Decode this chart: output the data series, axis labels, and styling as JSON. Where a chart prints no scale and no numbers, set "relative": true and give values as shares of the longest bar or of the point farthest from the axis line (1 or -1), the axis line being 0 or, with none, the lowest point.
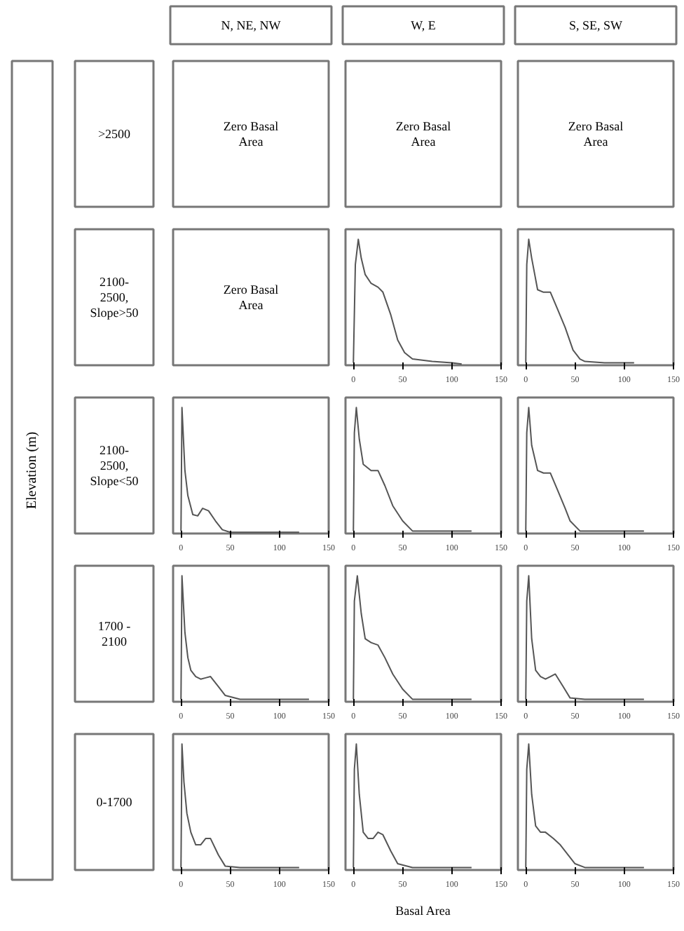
{
  "chart_data": [
    {
      "type": "other",
      "categories": [
        "N, NE, NW",
        "W, E",
        "S, SE, SW"
      ],
      "annotations": [
        ">2500",
        "2100-2500, Slope>50",
        "2100-2500, Slope<50",
        "1700 - 2100",
        "0-1700"
      ],
      "xlabel": "Basal Area",
      "ylabel": "Elevation (m)"
    },
    {
      "type": "other",
      "annotations": [
        "Zero Basal Area"
      ]
    },
    {
      "type": "other",
      "annotations": [
        "Zero Basal Area"
      ]
    },
    {
      "type": "other",
      "annotations": [
        "Zero Basal Area"
      ]
    },
    {
      "type": "other",
      "annotations": [
        "Zero Basal Area"
      ]
    },
    {
      "type": "line",
      "relative": true,
      "color": "#555555",
      "xlim": [
        -8,
        150
      ],
      "xticks": [
        0,
        50,
        100,
        150
      ],
      "tick_labels": "x",
      "x": [
        0,
        2,
        5,
        8,
        12,
        18,
        25,
        30,
        38,
        45,
        52,
        60,
        70,
        80,
        100,
        110
      ],
      "values": [
        0.02,
        0.8,
        1.0,
        0.85,
        0.72,
        0.65,
        0.62,
        0.58,
        0.4,
        0.2,
        0.1,
        0.05,
        0.04,
        0.03,
        0.02,
        0.01
      ]
    },
    {
      "type": "line",
      "relative": true,
      "color": "#555555",
      "xlim": [
        -8,
        150
      ],
      "xticks": [
        0,
        50,
        100,
        150
      ],
      "tick_labels": "x",
      "x": [
        0,
        1,
        3,
        6,
        12,
        18,
        25,
        32,
        40,
        48,
        55,
        60,
        80,
        110
      ],
      "values": [
        0.02,
        0.8,
        1.0,
        0.85,
        0.6,
        0.58,
        0.58,
        0.45,
        0.3,
        0.12,
        0.05,
        0.03,
        0.02,
        0.02
      ]
    },
    {
      "type": "line",
      "relative": true,
      "color": "#555555",
      "xlim": [
        -8,
        150
      ],
      "xticks": [
        0,
        50,
        100,
        150
      ],
      "tick_labels": "x",
      "x": [
        0,
        1,
        4,
        7,
        12,
        17,
        22,
        28,
        35,
        42,
        50,
        80,
        120
      ],
      "values": [
        0.02,
        1.0,
        0.5,
        0.3,
        0.15,
        0.14,
        0.2,
        0.18,
        0.1,
        0.03,
        0.01,
        0.01,
        0.01
      ]
    },
    {
      "type": "line",
      "relative": true,
      "color": "#555555",
      "xlim": [
        -8,
        150
      ],
      "xticks": [
        0,
        50,
        100,
        150
      ],
      "tick_labels": "x",
      "x": [
        0,
        1,
        3,
        6,
        10,
        18,
        25,
        32,
        40,
        50,
        60,
        90,
        120
      ],
      "values": [
        0.02,
        0.8,
        1.0,
        0.75,
        0.55,
        0.5,
        0.5,
        0.38,
        0.22,
        0.1,
        0.02,
        0.02,
        0.02
      ]
    },
    {
      "type": "line",
      "relative": true,
      "color": "#555555",
      "xlim": [
        -8,
        150
      ],
      "xticks": [
        0,
        50,
        100,
        150
      ],
      "tick_labels": "x",
      "x": [
        0,
        1,
        3,
        6,
        12,
        18,
        25,
        32,
        40,
        45,
        55,
        90,
        120
      ],
      "values": [
        0.02,
        0.8,
        1.0,
        0.7,
        0.5,
        0.48,
        0.48,
        0.35,
        0.2,
        0.1,
        0.02,
        0.02,
        0.02
      ]
    },
    {
      "type": "line",
      "relative": true,
      "color": "#555555",
      "xlim": [
        -8,
        150
      ],
      "xticks": [
        0,
        50,
        100,
        150
      ],
      "tick_labels": "x",
      "x": [
        0,
        1,
        4,
        7,
        10,
        15,
        20,
        25,
        30,
        38,
        45,
        60,
        100,
        130
      ],
      "values": [
        0.02,
        1.0,
        0.55,
        0.35,
        0.25,
        0.2,
        0.18,
        0.19,
        0.2,
        0.12,
        0.05,
        0.02,
        0.02,
        0.02
      ]
    },
    {
      "type": "line",
      "relative": true,
      "color": "#555555",
      "xlim": [
        -8,
        150
      ],
      "xticks": [
        0,
        50,
        100,
        150
      ],
      "tick_labels": "x",
      "x": [
        0,
        1,
        4,
        8,
        12,
        18,
        25,
        32,
        40,
        50,
        60,
        90,
        120
      ],
      "values": [
        0.02,
        0.8,
        1.0,
        0.7,
        0.5,
        0.47,
        0.45,
        0.35,
        0.22,
        0.1,
        0.02,
        0.02,
        0.02
      ]
    },
    {
      "type": "line",
      "relative": true,
      "color": "#555555",
      "xlim": [
        -8,
        150
      ],
      "xticks": [
        0,
        50,
        100,
        150
      ],
      "tick_labels": "x",
      "x": [
        0,
        1,
        3,
        6,
        10,
        15,
        20,
        25,
        30,
        38,
        45,
        60,
        100,
        120
      ],
      "values": [
        0.02,
        0.8,
        1.0,
        0.5,
        0.25,
        0.2,
        0.18,
        0.2,
        0.22,
        0.12,
        0.03,
        0.02,
        0.02,
        0.02
      ]
    },
    {
      "type": "line",
      "relative": true,
      "color": "#555555",
      "xlim": [
        -8,
        150
      ],
      "xticks": [
        0,
        50,
        100,
        150
      ],
      "tick_labels": "x",
      "x": [
        0,
        1,
        3,
        6,
        10,
        15,
        20,
        25,
        30,
        38,
        45,
        60,
        100,
        120
      ],
      "values": [
        0.02,
        1.0,
        0.7,
        0.45,
        0.3,
        0.2,
        0.2,
        0.25,
        0.25,
        0.12,
        0.03,
        0.02,
        0.02,
        0.02
      ]
    },
    {
      "type": "line",
      "relative": true,
      "color": "#555555",
      "xlim": [
        -8,
        150
      ],
      "xticks": [
        0,
        50,
        100,
        150
      ],
      "tick_labels": "x",
      "x": [
        0,
        1,
        3,
        6,
        10,
        15,
        20,
        25,
        30,
        38,
        45,
        60,
        100,
        120
      ],
      "values": [
        0.02,
        0.8,
        1.0,
        0.6,
        0.3,
        0.25,
        0.25,
        0.3,
        0.28,
        0.15,
        0.05,
        0.02,
        0.02,
        0.02
      ]
    },
    {
      "type": "line",
      "relative": true,
      "color": "#555555",
      "xlim": [
        -8,
        150
      ],
      "xticks": [
        0,
        50,
        100,
        150
      ],
      "tick_labels": "x",
      "x": [
        0,
        1,
        3,
        6,
        10,
        15,
        20,
        28,
        35,
        40,
        50,
        60,
        100,
        120
      ],
      "values": [
        0.02,
        0.8,
        1.0,
        0.6,
        0.35,
        0.3,
        0.3,
        0.25,
        0.2,
        0.15,
        0.05,
        0.02,
        0.02,
        0.02
      ]
    }
  ]
}
